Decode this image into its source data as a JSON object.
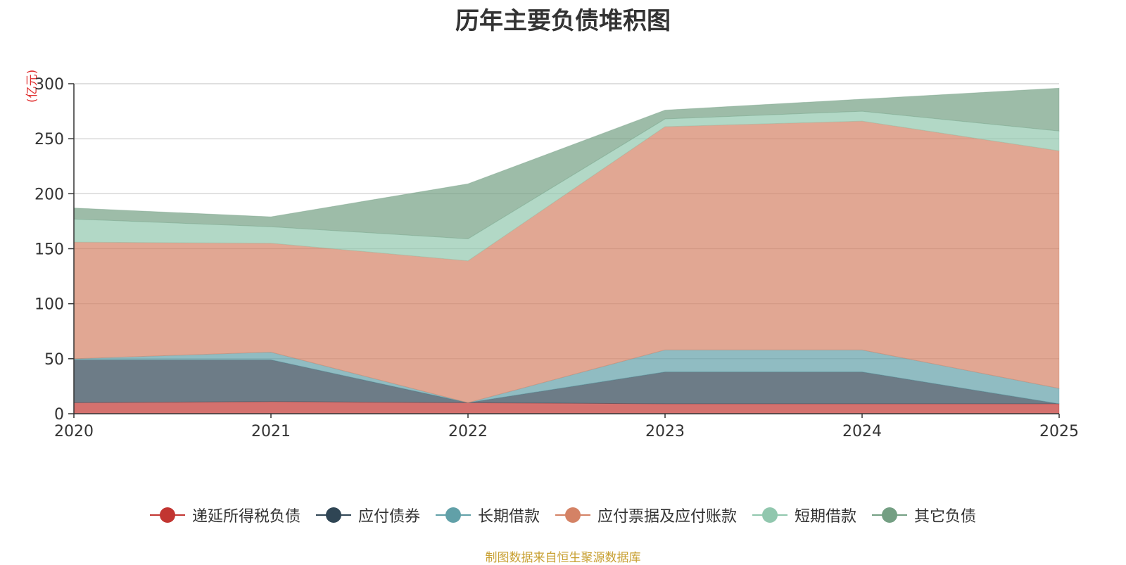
{
  "chart_data": {
    "type": "area",
    "stacked": true,
    "title": "历年主要负债堆积图",
    "unit_label": "(亿元)",
    "x": [
      "2020",
      "2021",
      "2022",
      "2023",
      "2024",
      "2025"
    ],
    "ylim": [
      0,
      300
    ],
    "yticks": [
      "0",
      "50",
      "100",
      "150",
      "200",
      "250",
      "300"
    ],
    "grid": true,
    "legend_position": "bottom",
    "series": [
      {
        "name": "递延所得税负债",
        "color": "#c23531",
        "values": [
          10,
          11,
          10,
          9,
          9,
          9
        ]
      },
      {
        "name": "应付债券",
        "color": "#2f4554",
        "values": [
          39,
          38,
          0,
          29,
          29,
          0
        ]
      },
      {
        "name": "长期借款",
        "color": "#61a0a8",
        "values": [
          1,
          7,
          0,
          20,
          20,
          14
        ]
      },
      {
        "name": "应付票据及应付账款",
        "color": "#d48265",
        "values": [
          106,
          99,
          129,
          203,
          208,
          216
        ]
      },
      {
        "name": "短期借款",
        "color": "#91c7ae",
        "values": [
          21,
          15,
          20,
          7,
          9,
          18
        ]
      },
      {
        "name": "其它负债",
        "color": "#749f83",
        "values": [
          10,
          9,
          50,
          8,
          11,
          39
        ]
      }
    ],
    "source_note": "制图数据来自恒生聚源数据库"
  }
}
